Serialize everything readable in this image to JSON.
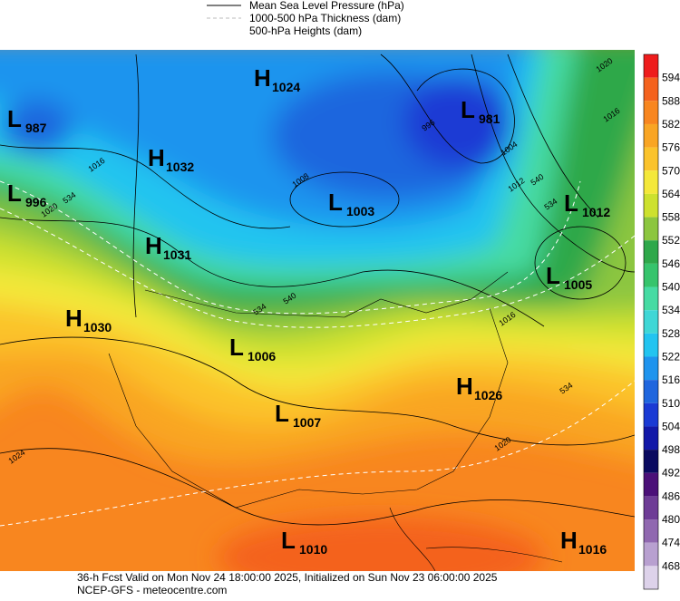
{
  "legend": [
    "Mean Sea Level Pressure (hPa)",
    "1000-500 hPa Thickness (dam)",
    "500-hPa Heights (dam)"
  ],
  "colorbar": {
    "labels": [
      594,
      588,
      582,
      576,
      570,
      564,
      558,
      552,
      546,
      540,
      534,
      528,
      522,
      516,
      510,
      504,
      498,
      492,
      486,
      480,
      474,
      468
    ],
    "colors": [
      "#ee1c1c",
      "#f4621e",
      "#f8861f",
      "#f9a524",
      "#fbc32c",
      "#f4e83a",
      "#cde12e",
      "#8cc63f",
      "#2ea84a",
      "#36c46c",
      "#46dba3",
      "#3fd7d6",
      "#22c4f0",
      "#1e94ee",
      "#1f66de",
      "#1a3ad4",
      "#1218a8",
      "#0a0a60",
      "#4b1078",
      "#6e3c96",
      "#9068b0",
      "#b8a0d0",
      "#ddd2ea"
    ]
  },
  "centers": [
    {
      "letter": "H",
      "value": 1024
    },
    {
      "letter": "L",
      "value": 987
    },
    {
      "letter": "L",
      "value": 981
    },
    {
      "letter": "H",
      "value": 1032
    },
    {
      "letter": "L",
      "value": 996
    },
    {
      "letter": "L",
      "value": 1003
    },
    {
      "letter": "L",
      "value": 1012
    },
    {
      "letter": "H",
      "value": 1031
    },
    {
      "letter": "L",
      "value": 1005
    },
    {
      "letter": "H",
      "value": 1030
    },
    {
      "letter": "L",
      "value": 1006
    },
    {
      "letter": "H",
      "value": 1026
    },
    {
      "letter": "L",
      "value": 1007
    },
    {
      "letter": "L",
      "value": 1010
    },
    {
      "letter": "H",
      "value": 1016
    }
  ],
  "contour_labels": [
    1016,
    534,
    1020,
    1024,
    534,
    540,
    1008,
    996,
    1004,
    1012,
    540,
    534,
    1016,
    1020,
    1016,
    534,
    1020
  ],
  "footer": [
    "36-h Fcst Valid on Mon Nov 24 18:00:00 2025, Initialized on Sun Nov 23 06:00:00 2025",
    "NCEP-GFS  - meteocentre.com"
  ]
}
